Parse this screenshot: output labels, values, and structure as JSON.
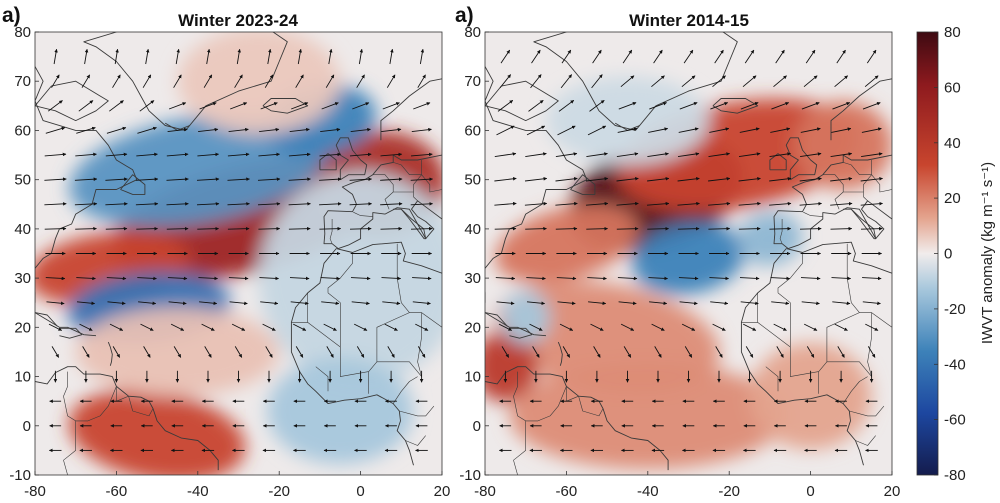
{
  "panels": [
    {
      "label": "a)",
      "title": "Winter 2023-24",
      "x_ticks": [
        "-80",
        "-60",
        "-40",
        "-20",
        "0",
        "20"
      ],
      "y_ticks": [
        "80",
        "70",
        "60",
        "50",
        "40",
        "30",
        "20",
        "10",
        "0",
        "-10"
      ],
      "blobs": [
        {
          "lon": -28,
          "lat": 42,
          "rx": 34,
          "ry": 6,
          "rot": -14,
          "v": 55
        },
        {
          "lon": 5,
          "lat": 49,
          "rx": 16,
          "ry": 6,
          "rot": -5,
          "v": 50
        },
        {
          "lon": -62,
          "lat": 32,
          "rx": 20,
          "ry": 4,
          "rot": -8,
          "v": 40
        },
        {
          "lon": -40,
          "lat": 52,
          "rx": 32,
          "ry": 6,
          "rot": -10,
          "v": -35
        },
        {
          "lon": -10,
          "lat": 62,
          "rx": 14,
          "ry": 4,
          "rot": -10,
          "v": -40
        },
        {
          "lon": -52,
          "lat": 24,
          "rx": 20,
          "ry": 4,
          "rot": -5,
          "v": -45
        },
        {
          "lon": -50,
          "lat": -2,
          "rx": 22,
          "ry": 5,
          "rot": 10,
          "v": 40
        },
        {
          "lon": -45,
          "lat": 15,
          "rx": 25,
          "ry": 5,
          "rot": 0,
          "v": 12
        },
        {
          "lon": 0,
          "lat": 30,
          "rx": 25,
          "ry": 12,
          "rot": 0,
          "v": -12
        },
        {
          "lon": -25,
          "lat": 70,
          "rx": 20,
          "ry": 6,
          "rot": 0,
          "v": 10
        },
        {
          "lon": -5,
          "lat": 3,
          "rx": 18,
          "ry": 6,
          "rot": 0,
          "v": -20
        }
      ],
      "wind": [
        {
          "lat": 75,
          "u": 0.1,
          "v": 0.6,
          "s": 0.5
        },
        {
          "lat": 70,
          "u": 0.3,
          "v": 0.5,
          "s": 0.5
        },
        {
          "lat": 65,
          "u": 0.8,
          "v": 0.3,
          "s": 0.7
        },
        {
          "lat": 60,
          "u": 1.0,
          "v": 0.12,
          "s": 0.85
        },
        {
          "lat": 55,
          "u": 1.0,
          "v": 0.08,
          "s": 0.95
        },
        {
          "lat": 50,
          "u": 1.0,
          "v": 0.06,
          "s": 1.0
        },
        {
          "lat": 45,
          "u": 1.0,
          "v": 0.05,
          "s": 1.0
        },
        {
          "lat": 40,
          "u": 1.0,
          "v": 0.03,
          "s": 0.95
        },
        {
          "lat": 35,
          "u": 1.0,
          "v": 0.0,
          "s": 0.85
        },
        {
          "lat": 30,
          "u": 1.0,
          "v": -0.05,
          "s": 0.8
        },
        {
          "lat": 25,
          "u": 1.0,
          "v": -0.1,
          "s": 0.7
        },
        {
          "lat": 20,
          "u": 0.6,
          "v": -0.3,
          "s": 0.45
        },
        {
          "lat": 15,
          "u": 0.3,
          "v": -0.5,
          "s": 0.35
        },
        {
          "lat": 10,
          "u": 0.0,
          "v": -0.3,
          "s": 0.25
        },
        {
          "lat": 5,
          "u": -0.5,
          "v": 0.0,
          "s": 0.25
        },
        {
          "lat": 0,
          "u": -0.6,
          "v": 0.0,
          "s": 0.25
        },
        {
          "lat": -5,
          "u": -0.7,
          "v": 0.0,
          "s": 0.3
        }
      ]
    },
    {
      "label": "a)",
      "title": "Winter 2014-15",
      "x_ticks": [
        "-80",
        "-60",
        "-40",
        "-20",
        "0",
        "20"
      ],
      "y_ticks": [
        "80",
        "70",
        "60",
        "50",
        "40",
        "30",
        "20",
        "10",
        "0",
        "-10"
      ],
      "blobs": [
        {
          "lon": -38,
          "lat": 47,
          "rx": 22,
          "ry": 6,
          "rot": -18,
          "v": 75
        },
        {
          "lon": -18,
          "lat": 55,
          "rx": 30,
          "ry": 6,
          "rot": -10,
          "v": 40
        },
        {
          "lon": 8,
          "lat": 57,
          "rx": 12,
          "ry": 5,
          "rot": 0,
          "v": 30
        },
        {
          "lon": -60,
          "lat": 37,
          "rx": 18,
          "ry": 4,
          "rot": -15,
          "v": 30
        },
        {
          "lon": -50,
          "lat": 18,
          "rx": 28,
          "ry": 6,
          "rot": 10,
          "v": 25
        },
        {
          "lon": -75,
          "lat": 12,
          "rx": 8,
          "ry": 4,
          "rot": 0,
          "v": 45
        },
        {
          "lon": -30,
          "lat": 34,
          "rx": 14,
          "ry": 4,
          "rot": -10,
          "v": -40
        },
        {
          "lon": -10,
          "lat": 38,
          "rx": 8,
          "ry": 3,
          "rot": -10,
          "v": -25
        },
        {
          "lon": -40,
          "lat": 2,
          "rx": 34,
          "ry": 6,
          "rot": 0,
          "v": 25
        },
        {
          "lon": 0,
          "lat": 6,
          "rx": 15,
          "ry": 6,
          "rot": 0,
          "v": 20
        },
        {
          "lon": -70,
          "lat": 22,
          "rx": 6,
          "ry": 3,
          "rot": 0,
          "v": -20
        },
        {
          "lon": -45,
          "lat": 62,
          "rx": 20,
          "ry": 5,
          "rot": 0,
          "v": -10
        }
      ],
      "wind": [
        {
          "lat": 75,
          "u": 0.4,
          "v": 0.6,
          "s": 0.55
        },
        {
          "lat": 70,
          "u": 0.6,
          "v": 0.5,
          "s": 0.65
        },
        {
          "lat": 65,
          "u": 0.8,
          "v": 0.3,
          "s": 0.75
        },
        {
          "lat": 60,
          "u": 1.0,
          "v": 0.2,
          "s": 0.85
        },
        {
          "lat": 55,
          "u": 1.0,
          "v": 0.15,
          "s": 0.95
        },
        {
          "lat": 50,
          "u": 1.0,
          "v": 0.12,
          "s": 1.0
        },
        {
          "lat": 45,
          "u": 1.0,
          "v": 0.08,
          "s": 1.0
        },
        {
          "lat": 40,
          "u": 1.0,
          "v": 0.03,
          "s": 0.95
        },
        {
          "lat": 35,
          "u": 1.0,
          "v": 0.0,
          "s": 0.85
        },
        {
          "lat": 30,
          "u": 1.0,
          "v": -0.05,
          "s": 0.8
        },
        {
          "lat": 25,
          "u": 1.0,
          "v": -0.1,
          "s": 0.7
        },
        {
          "lat": 20,
          "u": 0.6,
          "v": -0.3,
          "s": 0.45
        },
        {
          "lat": 15,
          "u": 0.3,
          "v": -0.5,
          "s": 0.35
        },
        {
          "lat": 10,
          "u": 0.0,
          "v": -0.3,
          "s": 0.25
        },
        {
          "lat": 5,
          "u": -0.5,
          "v": 0.0,
          "s": 0.25
        },
        {
          "lat": 0,
          "u": -0.6,
          "v": 0.0,
          "s": 0.25
        },
        {
          "lat": -5,
          "u": -0.7,
          "v": 0.0,
          "s": 0.3
        }
      ]
    }
  ],
  "colorbar": {
    "ticks": [
      "80",
      "60",
      "40",
      "20",
      "0",
      "-20",
      "-40",
      "-60",
      "-80"
    ],
    "label": "IWVT anomaly (kg m⁻¹ s⁻¹)",
    "range": [
      -80,
      80
    ]
  },
  "colors": {
    "land": "#d8d8d8",
    "coast": "#3a3a3a",
    "red_max": "#4a0b0b",
    "red_mid": "#c8452e",
    "white": "#f3eeee",
    "blue_mid": "#3d7db5",
    "blue_max": "#141c4d"
  }
}
